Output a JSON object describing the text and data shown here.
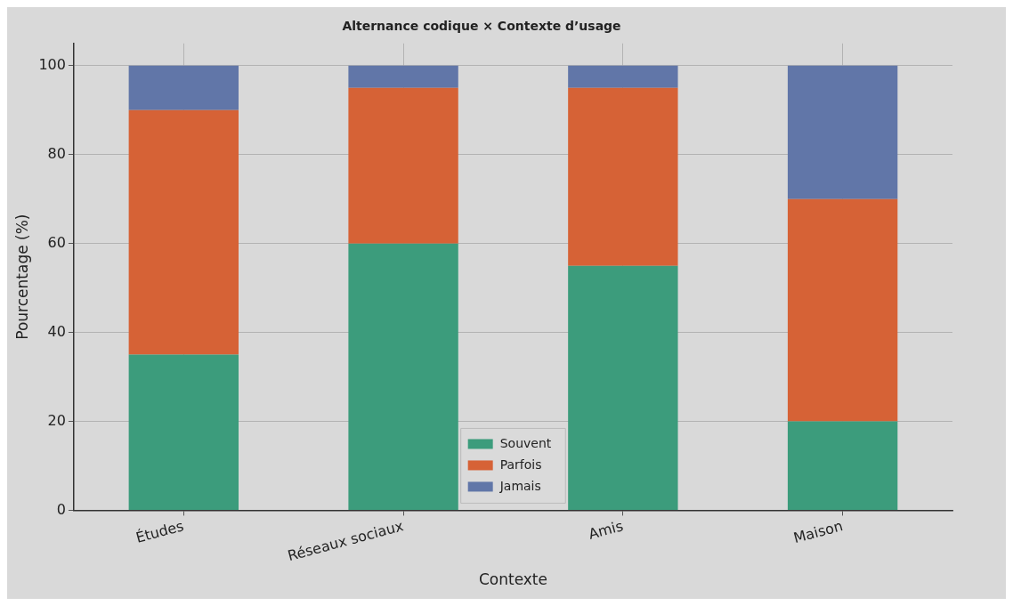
{
  "chart_data": {
    "type": "bar",
    "title": "Alternance codique × Contexte d’usage",
    "xlabel": "Contexte",
    "ylabel": "Pourcentage (%)",
    "categories": [
      "Études",
      "Réseaux sociaux",
      "Amis",
      "Maison"
    ],
    "series": [
      {
        "name": "Souvent",
        "color": "#3c9c7c",
        "values": [
          35,
          60,
          55,
          20
        ]
      },
      {
        "name": "Parfois",
        "color": "#d66236",
        "values": [
          55,
          35,
          40,
          50
        ]
      },
      {
        "name": "Jamais",
        "color": "#6176a8",
        "values": [
          10,
          5,
          5,
          30
        ]
      }
    ],
    "stacked": true,
    "ylim": [
      0,
      105
    ],
    "yticks": [
      0,
      20,
      40,
      60,
      80,
      100
    ],
    "grid": true,
    "legend": "bottom"
  }
}
